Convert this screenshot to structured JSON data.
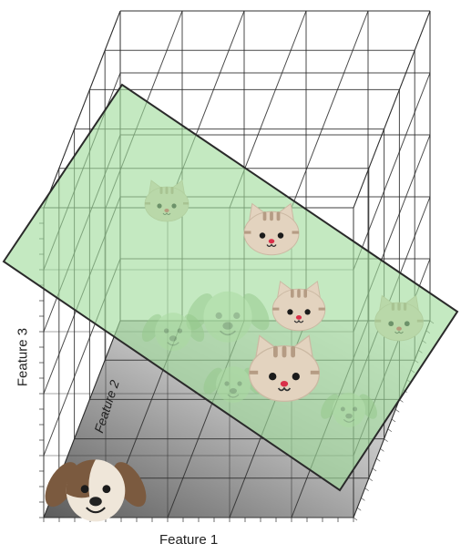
{
  "axes": {
    "x_label": "Feature 1",
    "y_label": "Feature 3",
    "z_label": "Feature 2"
  },
  "colors": {
    "plane_fill": "#9fdc9b",
    "plane_stroke": "#2a2a2a",
    "grid": "#2a2a2a",
    "floor_light": "#f2f2f2",
    "floor_dark": "#6a6a6a",
    "cat_fur": "#e3d3bf",
    "cat_stripe": "#b59c84",
    "dog_fur": "#efe6d9",
    "dog_ear": "#7b5a3f",
    "nose": "#d9304a"
  },
  "points": [
    {
      "kind": "cat",
      "size": 1.0,
      "behind_plane": true
    },
    {
      "kind": "cat",
      "size": 1.25,
      "behind_plane": false
    },
    {
      "kind": "dog",
      "size": 1.4,
      "behind_plane": true
    },
    {
      "kind": "cat",
      "size": 1.2,
      "behind_plane": false
    },
    {
      "kind": "dog",
      "size": 1.05,
      "behind_plane": true
    },
    {
      "kind": "cat",
      "size": 1.1,
      "behind_plane": true
    },
    {
      "kind": "cat",
      "size": 1.6,
      "behind_plane": false
    },
    {
      "kind": "dog",
      "size": 1.0,
      "behind_plane": true
    },
    {
      "kind": "dog",
      "size": 0.95,
      "behind_plane": true
    },
    {
      "kind": "dog",
      "size": 1.7,
      "behind_plane": false
    }
  ]
}
